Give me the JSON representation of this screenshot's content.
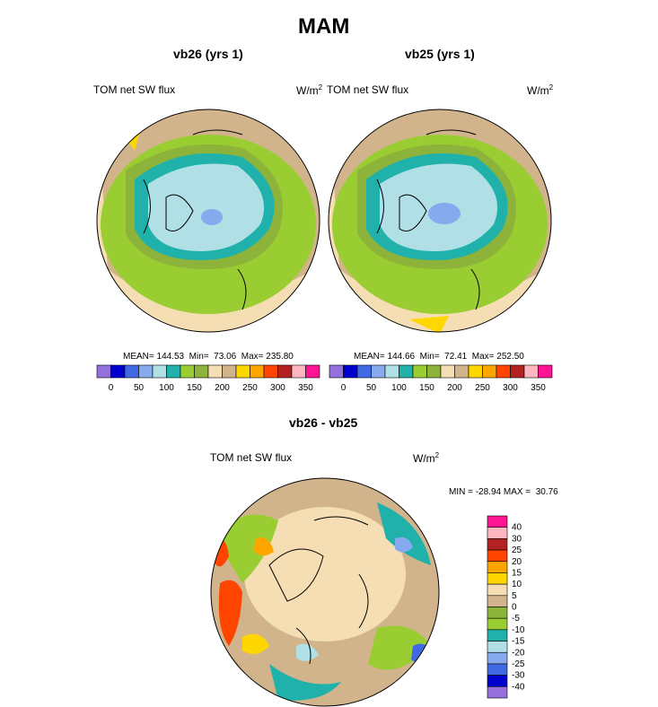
{
  "title": "MAM",
  "panels": [
    {
      "subtitle": "vb26 (yrs 1)",
      "variable": "TOM net SW flux",
      "units": "W/m",
      "units_exp": "2",
      "stats": "MEAN= 144.53  Min=  73.06  Max= 235.80"
    },
    {
      "subtitle": "vb25 (yrs 1)",
      "variable": "TOM net SW flux",
      "units": "W/m",
      "units_exp": "2",
      "stats": "MEAN= 144.66  Min=  72.41  Max= 252.50"
    }
  ],
  "diff_panel": {
    "subtitle": "vb26 - vb25",
    "variable": "TOM net SW flux",
    "units": "W/m",
    "units_exp": "2",
    "stats": "MIN = -28.94 MAX =  30.76"
  },
  "colorbar_top": {
    "colors": [
      "#9370db",
      "#0000cd",
      "#4169e1",
      "#87a9ee",
      "#b0e0e6",
      "#20b2aa",
      "#9acd32",
      "#8db33a",
      "#f5deb3",
      "#d2b48c",
      "#ffd700",
      "#ffa500",
      "#ff4500",
      "#b22222",
      "#ffb6c1",
      "#ff1493"
    ],
    "ticks": [
      "0",
      "50",
      "100",
      "150",
      "200",
      "250",
      "300",
      "350"
    ]
  },
  "colorbar_diff": {
    "colors": [
      "#ff1493",
      "#ffb6c1",
      "#b22222",
      "#ff4500",
      "#ffa500",
      "#ffd700",
      "#f5deb3",
      "#d2b48c",
      "#8db33a",
      "#9acd32",
      "#20b2aa",
      "#b0e0e6",
      "#87a9ee",
      "#4169e1",
      "#0000cd",
      "#9370db"
    ],
    "ticks": [
      "40",
      "30",
      "25",
      "20",
      "15",
      "10",
      "5",
      "0",
      "-5",
      "-10",
      "-15",
      "-20",
      "-25",
      "-30",
      "-40"
    ]
  }
}
